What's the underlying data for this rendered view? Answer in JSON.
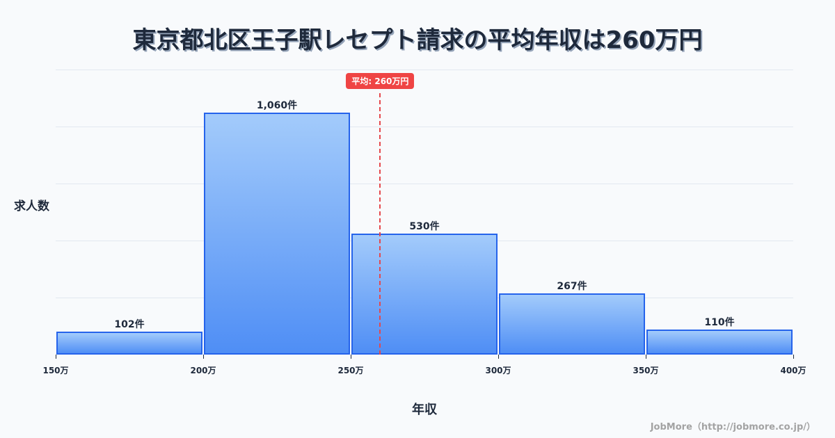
{
  "title": "東京都北区王子駅レセプト請求の平均年収は260万円",
  "mean_badge": "平均: 260万円",
  "ylabel": "求人数",
  "xlabel": "年収",
  "credit": "JobMore（http://jobmore.co.jp/）",
  "colors": {
    "bar_border": "#2563eb",
    "bar_top": "#a3cbfb",
    "bar_bottom": "#4f8ef5",
    "mean": "#ef4444",
    "text": "#1e293b"
  },
  "chart_data": {
    "type": "bar",
    "title": "東京都北区王子駅レセプト請求の平均年収は260万円",
    "xlabel": "年収",
    "ylabel": "求人数",
    "bins": [
      [
        150,
        200
      ],
      [
        200,
        250
      ],
      [
        250,
        300
      ],
      [
        300,
        350
      ],
      [
        350,
        400
      ]
    ],
    "categories": [
      "150万-200万",
      "200万-250万",
      "250万-300万",
      "300万-350万",
      "350万-400万"
    ],
    "values": [
      102,
      1060,
      530,
      267,
      110
    ],
    "value_labels": [
      "102件",
      "1,060件",
      "530件",
      "267件",
      "110件"
    ],
    "x_ticks": [
      "150万",
      "200万",
      "250万",
      "300万",
      "350万",
      "400万"
    ],
    "xlim": [
      150,
      400
    ],
    "ylim": [
      0,
      1250
    ],
    "grid": true,
    "annotations": [
      {
        "type": "vline",
        "x": 260,
        "label": "平均: 260万円",
        "style": "dashed",
        "color": "#ef4444"
      }
    ]
  }
}
